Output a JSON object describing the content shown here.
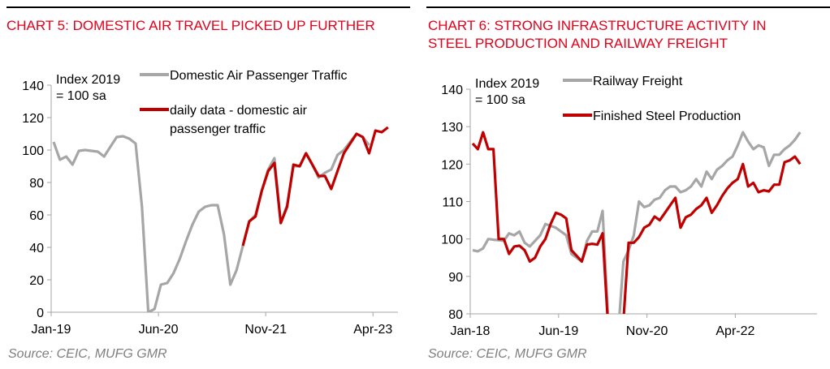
{
  "colors": {
    "title": "#e2001a",
    "gray": "#a6a6a6",
    "red": "#c00000"
  },
  "chart_data": [
    {
      "type": "line",
      "title": "CHART 5: DOMESTIC AIR TRAVEL PICKED UP FURTHER",
      "source": "Source: CEIC, MUFG GMR",
      "note": [
        "Index 2019",
        "= 100 sa"
      ],
      "x_start": "Jan-19",
      "x_freq": "monthly",
      "xticks": [
        "Jan-19",
        "Jun-20",
        "Nov-21",
        "Apr-23"
      ],
      "yticks": [
        0,
        20,
        40,
        60,
        80,
        100,
        120,
        140
      ],
      "ylim": [
        0,
        140
      ],
      "grid": false,
      "legend": "top",
      "series": [
        {
          "name": "Domestic Air Passenger Traffic",
          "color": "#a6a6a6",
          "start_index": 0,
          "values": [
            105,
            94,
            96,
            91,
            99.5,
            100,
            99.5,
            99,
            96,
            102,
            108,
            108.5,
            107,
            104,
            65,
            0,
            2,
            17,
            18,
            24,
            33,
            44,
            54,
            62,
            65,
            66,
            66,
            48,
            17,
            26,
            41,
            56,
            60,
            75,
            88,
            95,
            55,
            66,
            90,
            90,
            98,
            91,
            83,
            86,
            88,
            97,
            100,
            105,
            110,
            108,
            103
          ]
        },
        {
          "name": "daily data - domestic air passenger traffic",
          "color": "#c00000",
          "start_index": 30,
          "values": [
            41,
            56,
            59,
            75,
            87,
            92,
            55,
            65,
            91,
            90,
            98,
            91,
            84,
            84,
            76,
            87,
            98,
            104,
            110,
            108,
            98,
            112,
            111,
            114
          ]
        }
      ]
    },
    {
      "type": "line",
      "title": "CHART 6: STRONG INFRASTRUCTURE ACTIVITY IN STEEL PRODUCTION AND RAILWAY FREIGHT",
      "source": "Source: CEIC, MUFG GMR",
      "note": [
        "Index 2019",
        "= 100 sa"
      ],
      "x_start": "Jan-18",
      "x_freq": "monthly",
      "xticks": [
        "Jan-18",
        "Jun-19",
        "Nov-20",
        "Apr-22"
      ],
      "yticks": [
        80,
        90,
        100,
        110,
        120,
        130,
        140
      ],
      "ylim": [
        80,
        140
      ],
      "grid": false,
      "legend": "top",
      "series": [
        {
          "name": "Railway Freight",
          "color": "#a6a6a6",
          "start_index": 0,
          "values": [
            97,
            96.7,
            97.5,
            100,
            99.8,
            99.7,
            99.5,
            101.5,
            101,
            102,
            99,
            98,
            99.5,
            101,
            104,
            103.5,
            103,
            102,
            101,
            96,
            95,
            94,
            99.5,
            102,
            102,
            107.5,
            80,
            70,
            75,
            94,
            97,
            101,
            110,
            108.5,
            109,
            110.5,
            111,
            113,
            114,
            114,
            112.5,
            113,
            114,
            116,
            114,
            118,
            116,
            118.5,
            119.5,
            121,
            122,
            125,
            128.5,
            126,
            124,
            125,
            124.5,
            119.5,
            122.5,
            122.5,
            124,
            125,
            126.5,
            128.5
          ]
        },
        {
          "name": "Finished Steel Production",
          "color": "#c00000",
          "start_index": 0,
          "values": [
            125.5,
            124,
            128.5,
            124,
            124,
            100,
            100,
            96,
            98,
            98.2,
            97,
            94,
            95,
            98,
            100,
            104,
            107,
            106.5,
            105.5,
            97,
            95.5,
            94,
            98.5,
            98.7,
            98.5,
            101.5,
            78,
            65,
            65,
            78,
            99,
            99,
            100.5,
            103,
            103.8,
            106,
            105,
            107,
            109,
            111,
            103,
            105.8,
            106.5,
            108,
            109,
            111,
            107,
            109,
            111.5,
            113.5,
            115,
            116,
            120,
            114,
            115,
            112.5,
            113,
            112.7,
            114.5,
            114.5,
            120.5,
            121,
            122,
            120
          ]
        }
      ]
    }
  ]
}
